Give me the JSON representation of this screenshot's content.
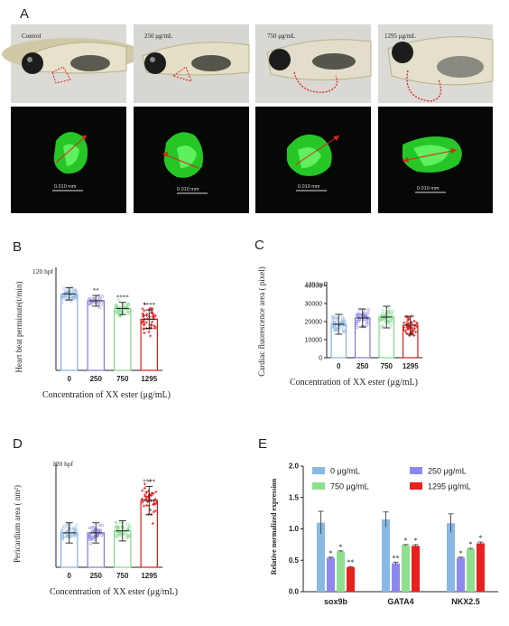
{
  "panel_a": {
    "letter": "A",
    "conditions": [
      "Control",
      "250 μg/mL",
      "750 μg/mL",
      "1295 μg/mL"
    ],
    "scale_bar_label": "0.010 mm"
  },
  "chart_data": [
    {
      "id": "B",
      "type": "bar",
      "letter": "B",
      "annotation": "120 hpf",
      "xlabel": "Concentration of XX ester (μg/mL)",
      "ylabel": "Heart beat perminute(t/min)",
      "categories": [
        "0",
        "250",
        "750",
        "1295"
      ],
      "values": [
        100,
        91,
        81,
        67
      ],
      "errors": [
        8,
        7,
        8,
        12
      ],
      "scatter_spread": [
        14,
        12,
        14,
        28
      ],
      "significance": [
        "",
        "**",
        "****",
        "****"
      ],
      "colors": [
        "#86b0dd",
        "#8279d8",
        "#7fd98a",
        "#e01818"
      ],
      "ylim": [
        0,
        130
      ],
      "show_y_ticks": false,
      "yticks": []
    },
    {
      "id": "C",
      "type": "bar",
      "letter": "C",
      "annotation": "120 hpf",
      "xlabel": "Concentration of XX ester (μg/mL)",
      "ylabel": "Cardiac fluorescence area ( pixel)",
      "categories": [
        "0",
        "250",
        "750",
        "1295"
      ],
      "values": [
        18500,
        22000,
        22500,
        18000
      ],
      "errors": [
        5500,
        5000,
        6000,
        5000
      ],
      "scatter_spread": [
        7000,
        7000,
        7000,
        8000
      ],
      "significance": [
        "",
        "",
        "",
        ""
      ],
      "colors": [
        "#86b0dd",
        "#8279d8",
        "#7fd98a",
        "#e01818"
      ],
      "ylim": [
        0,
        40000
      ],
      "show_y_ticks": true,
      "yticks": [
        0,
        10000,
        20000,
        30000,
        40000
      ],
      "ytick_labels": [
        "0",
        "10000",
        "20000",
        "30000",
        "40000"
      ]
    },
    {
      "id": "D",
      "type": "bar",
      "letter": "D",
      "annotation": "120 hpf",
      "xlabel": "Concentration of XX ester (μg/mL)",
      "ylabel": "Pericardium area ( nm²)",
      "categories": [
        "0",
        "250",
        "750",
        "1295"
      ],
      "values": [
        0.17,
        0.17,
        0.18,
        0.33
      ],
      "errors": [
        0.05,
        0.05,
        0.05,
        0.07
      ],
      "scatter_spread": [
        0.07,
        0.06,
        0.07,
        0.13
      ],
      "significance": [
        "",
        "",
        "",
        "****"
      ],
      "colors": [
        "#86b0dd",
        "#8279d8",
        "#7fd98a",
        "#e01818"
      ],
      "ylim": [
        0,
        0.5
      ],
      "show_y_ticks": false,
      "yticks": []
    },
    {
      "id": "E",
      "type": "bar",
      "letter": "E",
      "ylabel": "Relative normalized expression",
      "categories": [
        "sox9b",
        "GATA4",
        "NKX2.5"
      ],
      "ylim": [
        0,
        2.0
      ],
      "yticks": [
        0.0,
        0.5,
        1.0,
        1.5,
        2.0
      ],
      "ytick_labels": [
        "0.0",
        "0.5",
        "1.0",
        "1.5",
        "2.0"
      ],
      "legend_position": "top",
      "series": [
        {
          "name": "0 μg/mL",
          "color": "#88b8e6",
          "values": [
            1.1,
            1.15,
            1.09
          ],
          "errors": [
            0.18,
            0.12,
            0.15
          ],
          "significance": [
            "",
            "",
            ""
          ]
        },
        {
          "name": "250 μg/mL",
          "color": "#8c88ee",
          "values": [
            0.54,
            0.45,
            0.54
          ],
          "errors": [
            0.01,
            0.02,
            0.01
          ],
          "significance": [
            "*",
            "**",
            "*"
          ]
        },
        {
          "name": "750 μg/mL",
          "color": "#8ee08e",
          "values": [
            0.64,
            0.74,
            0.68
          ],
          "errors": [
            0.01,
            0.01,
            0.01
          ],
          "significance": [
            "*",
            "*",
            "*"
          ]
        },
        {
          "name": "1295 μg/mL",
          "color": "#e82020",
          "values": [
            0.39,
            0.73,
            0.77
          ],
          "errors": [
            0.01,
            0.02,
            0.02
          ],
          "significance": [
            "**",
            "*",
            "*"
          ]
        }
      ]
    }
  ]
}
